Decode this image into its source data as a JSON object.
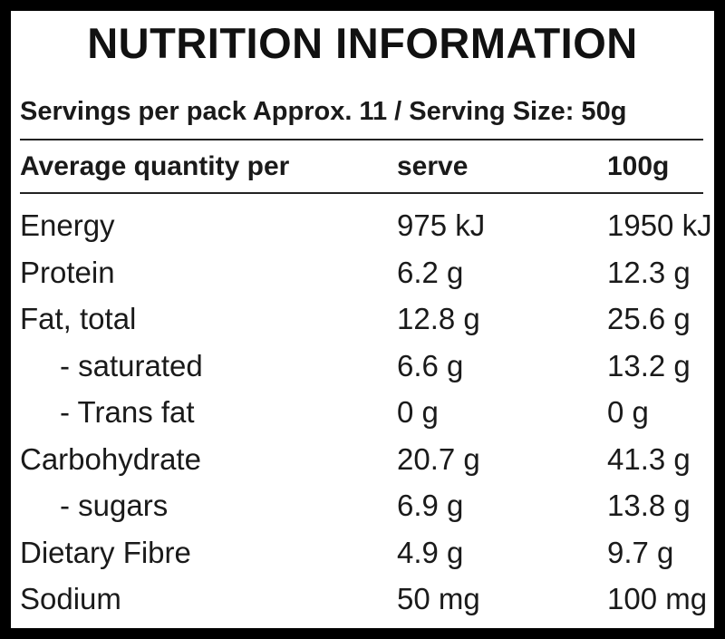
{
  "title": "NUTRITION INFORMATION",
  "serving_line": "Servings per pack Approx. 11 / Serving Size: 50g",
  "header": {
    "col1": "Average quantity per",
    "col2": "serve",
    "col3": "100g"
  },
  "rows": [
    {
      "name": "Energy",
      "serve": "975 kJ",
      "per100": "1950 kJ"
    },
    {
      "name": "Protein",
      "serve": "6.2 g",
      "per100": "12.3 g"
    },
    {
      "name": "Fat, total",
      "serve": "12.8 g",
      "per100": "25.6 g"
    },
    {
      "name": "- saturated",
      "serve": "6.6 g",
      "per100": "13.2 g"
    },
    {
      "name": "- Trans fat",
      "serve": "0 g",
      "per100": "0 g"
    },
    {
      "name": "Carbohydrate",
      "serve": "20.7 g",
      "per100": "41.3 g"
    },
    {
      "name": "- sugars",
      "serve": "6.9 g",
      "per100": "13.8 g"
    },
    {
      "name": "Dietary Fibre",
      "serve": "4.9 g",
      "per100": "9.7 g"
    },
    {
      "name": "Sodium",
      "serve": "50 mg",
      "per100": "100 mg"
    }
  ]
}
